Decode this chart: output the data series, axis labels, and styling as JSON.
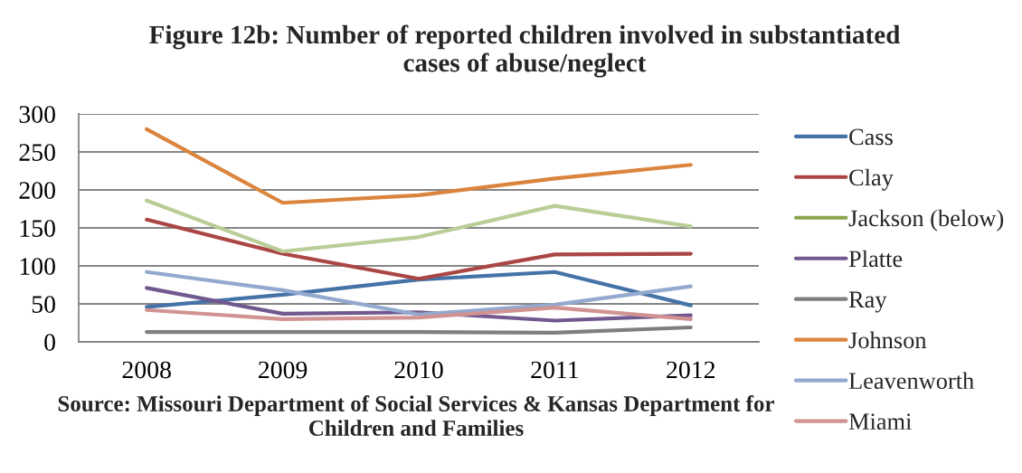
{
  "chart_data": {
    "type": "line",
    "title": "Figure 12b: Number of reported children involved in substantiated\ncases of abuse/neglect",
    "annotations": [
      "Source: Missouri Department of Social Services & Kansas Department for\nChildren and Families"
    ],
    "categories": [
      "2008",
      "2009",
      "2010",
      "2011",
      "2012"
    ],
    "series": [
      {
        "name": "Cass",
        "color": "#4572a7",
        "values": [
          46,
          62,
          82,
          92,
          48
        ]
      },
      {
        "name": "Clay",
        "color": "#aa4643",
        "values": [
          161,
          116,
          83,
          115,
          116
        ]
      },
      {
        "name": "Jackson (below)",
        "color": "#89a54e",
        "values": [
          null,
          null,
          null,
          null,
          null
        ]
      },
      {
        "name": "Platte",
        "color": "#71588f",
        "values": [
          71,
          37,
          39,
          28,
          35
        ]
      },
      {
        "name": "Ray",
        "color": "#7f7f7f",
        "values": [
          13,
          13,
          13,
          12,
          19
        ]
      },
      {
        "name": "Johnson",
        "color": "#db843d",
        "values": [
          280,
          183,
          193,
          215,
          233
        ]
      },
      {
        "name": "Leavenworth",
        "color": "#93a9cf",
        "values": [
          92,
          68,
          36,
          49,
          73
        ]
      },
      {
        "name": "Miami",
        "color": "#d19392",
        "values": [
          42,
          30,
          32,
          45,
          30
        ]
      },
      {
        "color": "#b9cd96",
        "values": [
          186,
          119,
          138,
          179,
          152
        ]
      }
    ],
    "ylim": [
      0,
      300
    ],
    "yticks": [
      0,
      50,
      100,
      150,
      200,
      250,
      300
    ],
    "grid": "y",
    "legend": "right",
    "line_style": "solid"
  }
}
